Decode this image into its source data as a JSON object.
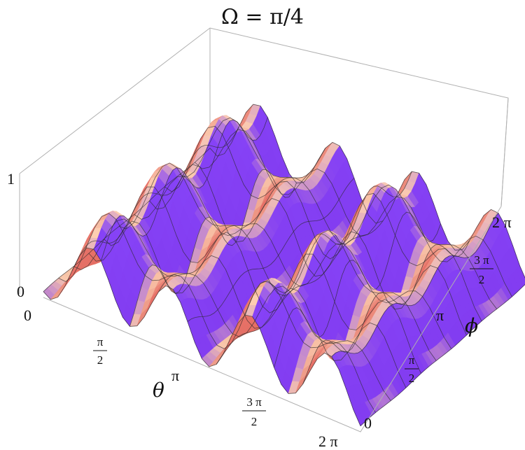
{
  "chart_data": {
    "type": "surface3d",
    "title": "Ω = π/4",
    "xlabel": "θ",
    "ylabel": "ϕ",
    "zlim": [
      0,
      1
    ],
    "z_ticks": [
      "0",
      "1"
    ],
    "theta_ticks": [
      {
        "value": 0,
        "label": "0"
      },
      {
        "value": 1.5708,
        "label": "π/2"
      },
      {
        "value": 3.1416,
        "label": "π"
      },
      {
        "value": 4.7124,
        "label": "3π/2"
      },
      {
        "value": 6.2832,
        "label": "2 π"
      }
    ],
    "phi_ticks": [
      {
        "value": 0,
        "label": "0"
      },
      {
        "value": 1.5708,
        "label": "π/2"
      },
      {
        "value": 3.1416,
        "label": "π"
      },
      {
        "value": 4.7124,
        "label": "3π/2"
      },
      {
        "value": 6.2832,
        "label": "2 π"
      }
    ],
    "surface": "z(θ, ϕ) ≈ periodic egg-crate peaks, ~4 ridges along θ and 3 along ϕ, range 0–1",
    "grid": true,
    "colormap": "pastel (peach / pink / violet / pale blue)"
  }
}
